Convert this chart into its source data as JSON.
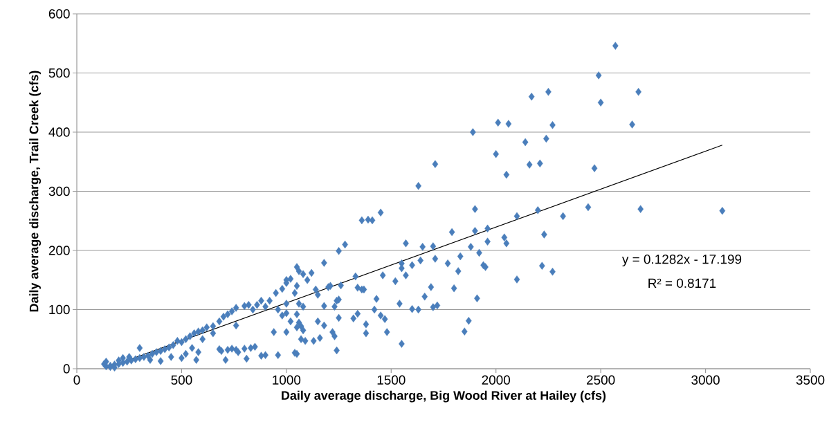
{
  "chart_data": {
    "type": "scatter",
    "xlabel": "Daily average discharge, Big Wood River at Hailey (cfs)",
    "ylabel": "Daily average discharge, Trail Creek (cfs)",
    "xlim": [
      0,
      3500
    ],
    "ylim": [
      0,
      600
    ],
    "xticks": [
      0,
      500,
      1000,
      1500,
      2000,
      2500,
      3000,
      3500
    ],
    "yticks": [
      0,
      100,
      200,
      300,
      400,
      500,
      600
    ],
    "grid": "y",
    "marker": "diamond",
    "annotations": [
      "y = 0.1282x - 17.199",
      "R² = 0.8171"
    ],
    "series": [
      {
        "color": "#4a7ebb",
        "x": [
          2570,
          2490,
          2680,
          2250,
          2170,
          2500,
          2010,
          2060,
          2650,
          2270,
          1890,
          2240,
          2140,
          2000,
          2160,
          2210,
          1710,
          2470,
          2050,
          1630,
          1900,
          2200,
          2690,
          3080,
          2440,
          2320,
          2100,
          2230,
          1450,
          1360,
          1390,
          1410,
          1790,
          1960,
          1900,
          1960,
          2050,
          2040,
          1280,
          1570,
          1650,
          1700,
          1880,
          1250,
          1920,
          1830,
          1640,
          1710,
          1550,
          1600,
          1770,
          1940,
          1950,
          2220,
          1180,
          2270,
          1550,
          1570,
          1460,
          1520,
          1820,
          1800,
          2100,
          1690,
          1330,
          1340,
          1370,
          1210,
          1140,
          1260,
          1910,
          1660,
          1430,
          1700,
          1720,
          1600,
          1630,
          1470,
          1420,
          1450,
          1360,
          1320,
          1340,
          1540,
          1380,
          1380,
          1480,
          1550,
          1850,
          1870,
          1240,
          1230,
          1180,
          1220,
          1240,
          1230,
          1130,
          1160,
          1180,
          1150,
          1250,
          1080,
          1060,
          1050,
          1060,
          1070,
          1080,
          1050,
          1090,
          1040,
          1050,
          960,
          900,
          850,
          800,
          810,
          760,
          720,
          710,
          740,
          680,
          770,
          940,
          1000,
          1020,
          1000,
          980,
          960,
          1000,
          1040,
          1050,
          1060,
          1050,
          1080,
          1100,
          1120,
          1000,
          1020,
          980,
          950,
          920,
          900,
          880,
          860,
          840,
          820,
          800,
          760,
          740,
          720,
          700,
          680,
          650,
          620,
          600,
          580,
          560,
          540,
          520,
          500,
          480,
          460,
          440,
          420,
          400,
          380,
          360,
          340,
          320,
          300,
          280,
          260,
          240,
          220,
          200,
          180,
          160,
          140,
          130,
          140,
          160,
          180,
          200,
          220,
          250,
          300,
          350,
          400,
          450,
          500,
          520,
          550,
          570,
          580,
          600,
          650,
          760,
          690,
          830,
          880,
          1070,
          1250,
          1000,
          1150,
          1200
        ],
        "values": [
          546,
          496,
          468,
          468,
          460,
          450,
          416,
          414,
          413,
          412,
          400,
          389,
          383,
          363,
          345,
          347,
          346,
          339,
          328,
          309,
          270,
          268,
          270,
          267,
          273,
          258,
          258,
          227,
          264,
          251,
          252,
          251,
          231,
          237,
          233,
          215,
          212,
          222,
          210,
          212,
          206,
          207,
          206,
          199,
          196,
          190,
          183,
          186,
          178,
          175,
          178,
          175,
          172,
          174,
          179,
          164,
          170,
          158,
          158,
          148,
          165,
          136,
          151,
          138,
          156,
          137,
          134,
          140,
          134,
          141,
          119,
          122,
          118,
          104,
          107,
          101,
          100,
          84,
          100,
          90,
          134,
          85,
          93,
          110,
          75,
          60,
          62,
          42,
          63,
          81,
          115,
          105,
          106,
          62,
          31,
          55,
          47,
          52,
          73,
          80,
          86,
          105,
          110,
          92,
          78,
          72,
          65,
          70,
          47,
          27,
          25,
          23,
          23,
          37,
          34,
          17,
          32,
          32,
          15,
          34,
          33,
          28,
          62,
          62,
          80,
          94,
          90,
          100,
          110,
          128,
          140,
          165,
          172,
          160,
          150,
          162,
          150,
          152,
          135,
          128,
          115,
          105,
          115,
          108,
          100,
          108,
          106,
          103,
          97,
          92,
          88,
          80,
          72,
          70,
          65,
          63,
          60,
          55,
          50,
          45,
          47,
          40,
          36,
          33,
          30,
          28,
          25,
          22,
          20,
          18,
          16,
          14,
          12,
          10,
          8,
          7,
          5,
          4,
          8,
          12,
          3,
          2,
          14,
          18,
          20,
          35,
          15,
          13,
          20,
          18,
          25,
          35,
          15,
          28,
          50,
          60,
          73,
          30,
          35,
          22,
          50,
          117,
          145,
          125,
          138
        ]
      },
      {
        "type": "line",
        "color": "#000000",
        "x": [
          140,
          3080
        ],
        "values": [
          1,
          378
        ],
        "marker": "none"
      }
    ]
  }
}
